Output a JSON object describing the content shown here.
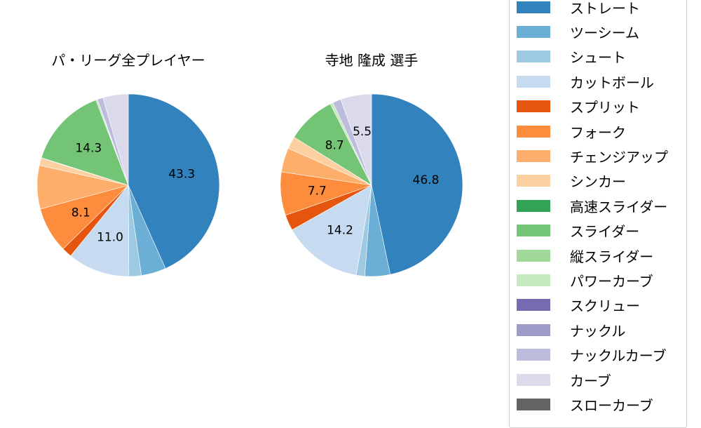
{
  "titles": {
    "left": "パ・リーグ全プレイヤー",
    "right": "寺地 隆成  選手"
  },
  "legend": [
    {
      "label": "ストレート",
      "color": "#3182bd"
    },
    {
      "label": "ツーシーム",
      "color": "#6baed6"
    },
    {
      "label": "シュート",
      "color": "#9ecae1"
    },
    {
      "label": "カットボール",
      "color": "#c6dbef"
    },
    {
      "label": "スプリット",
      "color": "#e6550d"
    },
    {
      "label": "フォーク",
      "color": "#fd8d3c"
    },
    {
      "label": "チェンジアップ",
      "color": "#fdae6b"
    },
    {
      "label": "シンカー",
      "color": "#fdd0a2"
    },
    {
      "label": "高速スライダー",
      "color": "#31a354"
    },
    {
      "label": "スライダー",
      "color": "#74c476"
    },
    {
      "label": "縦スライダー",
      "color": "#a1d99b"
    },
    {
      "label": "パワーカーブ",
      "color": "#c7e9c0"
    },
    {
      "label": "スクリュー",
      "color": "#756bb1"
    },
    {
      "label": "ナックル",
      "color": "#9e9ac8"
    },
    {
      "label": "ナックルカーブ",
      "color": "#bcbddc"
    },
    {
      "label": "カーブ",
      "color": "#dadaeb"
    },
    {
      "label": "スローカーブ",
      "color": "#636363"
    }
  ],
  "chart_data": [
    {
      "type": "pie",
      "title": "パ・リーグ全プレイヤー",
      "start_angle": 90,
      "direction": "clockwise",
      "categories": [
        "ストレート",
        "ツーシーム",
        "シュート",
        "カットボール",
        "スプリット",
        "フォーク",
        "チェンジアップ",
        "シンカー",
        "高速スライダー",
        "スライダー",
        "縦スライダー",
        "パワーカーブ",
        "スクリュー",
        "ナックル",
        "ナックルカーブ",
        "カーブ",
        "スローカーブ"
      ],
      "values": [
        43.3,
        4.4,
        2.2,
        11.0,
        1.8,
        8.1,
        7.7,
        1.3,
        0.1,
        14.3,
        0.2,
        0.0,
        0.1,
        0.0,
        1.0,
        4.5,
        0.0
      ],
      "labels_shown": {
        "ストレート": "43.3",
        "カットボール": "11.0",
        "フォーク": "8.1",
        "スライダー": "14.3"
      }
    },
    {
      "type": "pie",
      "title": "寺地 隆成  選手",
      "start_angle": 90,
      "direction": "clockwise",
      "categories": [
        "ストレート",
        "ツーシーム",
        "シュート",
        "カットボール",
        "スプリット",
        "フォーク",
        "チェンジアップ",
        "シンカー",
        "高速スライダー",
        "スライダー",
        "縦スライダー",
        "パワーカーブ",
        "スクリュー",
        "ナックル",
        "ナックルカーブ",
        "カーブ",
        "スローカーブ"
      ],
      "values": [
        46.8,
        4.5,
        1.5,
        14.2,
        2.8,
        7.7,
        4.3,
        2.2,
        0.0,
        8.7,
        0.0,
        0.5,
        0.0,
        0.0,
        1.5,
        5.5,
        0.0
      ],
      "labels_shown": {
        "ストレート": "46.8",
        "カットボール": "14.2",
        "フォーク": "7.7",
        "スライダー": "8.7",
        "カーブ": "5.5"
      }
    }
  ]
}
